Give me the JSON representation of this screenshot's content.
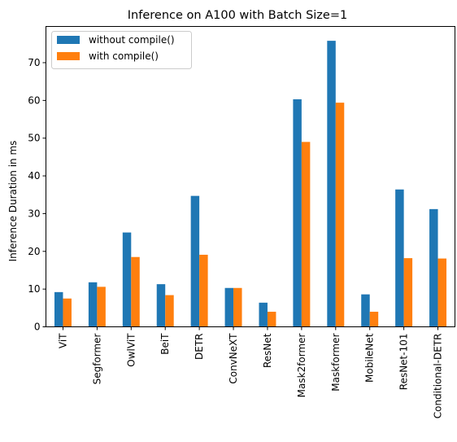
{
  "chart_data": {
    "type": "bar",
    "title": "Inference on A100 with Batch Size=1",
    "xlabel": "",
    "ylabel": "Inference Duration in ms",
    "categories": [
      "ViT",
      "Segformer",
      "OwlViT",
      "BeiT",
      "DETR",
      "ConvNeXT",
      "ResNet",
      "Mask2former",
      "Maskformer",
      "MobileNet",
      "ResNet-101",
      "Conditional-DETR"
    ],
    "series": [
      {
        "name": "without compile()",
        "color": "#1f77b4",
        "values": [
          9.2,
          11.8,
          25.0,
          11.3,
          34.7,
          10.3,
          6.4,
          60.3,
          75.8,
          8.6,
          36.4,
          31.2
        ]
      },
      {
        "name": "with compile()",
        "color": "#ff7f0e",
        "values": [
          7.5,
          10.6,
          18.5,
          8.4,
          19.1,
          10.3,
          4.0,
          49.0,
          59.4,
          4.0,
          18.2,
          18.1
        ]
      }
    ],
    "ylim": [
      0,
      79.6
    ],
    "yticks": [
      0,
      10,
      20,
      30,
      40,
      50,
      60,
      70
    ],
    "grid": false,
    "legend": "top-left"
  }
}
